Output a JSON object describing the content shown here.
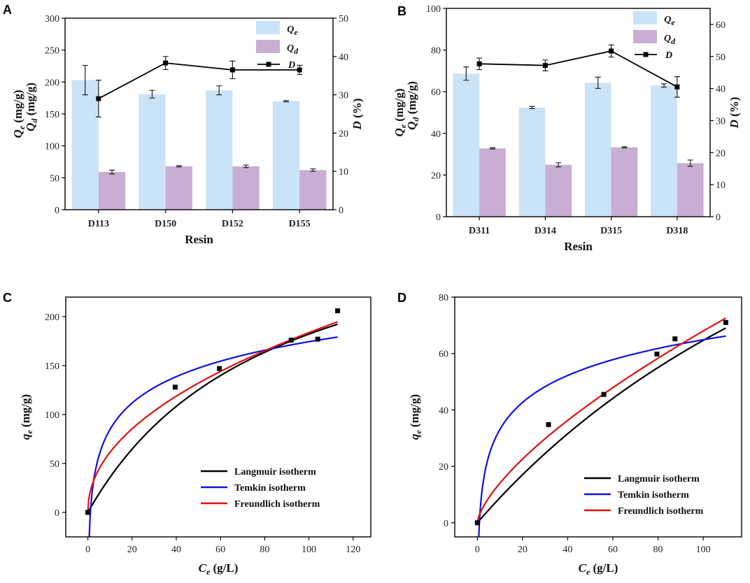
{
  "colors": {
    "qe_bar": "#cbe3f7",
    "qd_bar": "#c8aed2",
    "langmuir": "#000000",
    "temkin": "#1010e6",
    "freundlich": "#e01010"
  },
  "chart_data": [
    {
      "panel": "A",
      "type": "bar",
      "xlabel": "Resin",
      "ylabel_left": "Qe Qd (mg/g)",
      "ylabel_right": "D (%)",
      "categories": [
        "D113",
        "D150",
        "D152",
        "D155"
      ],
      "ylim_left": [
        0,
        300
      ],
      "yticks_left": [
        0,
        50,
        100,
        150,
        200,
        250,
        300
      ],
      "ylim_right": [
        0,
        50
      ],
      "yticks_right": [
        0,
        10,
        20,
        30,
        40,
        50
      ],
      "legend": [
        "Qe",
        "Qd",
        "D"
      ],
      "series": [
        {
          "name": "Qe",
          "values": [
            203,
            181,
            187,
            170
          ],
          "errors": [
            23,
            6,
            7,
            1
          ]
        },
        {
          "name": "Qd",
          "values": [
            59,
            68,
            68,
            62
          ],
          "errors": [
            3,
            1,
            2,
            2
          ]
        },
        {
          "name": "D",
          "axis": "right",
          "values": [
            29,
            38.3,
            36.5,
            36.5
          ],
          "errors": [
            4.8,
            1.7,
            2.3,
            1.2
          ]
        }
      ]
    },
    {
      "panel": "B",
      "type": "bar",
      "xlabel": "Resin",
      "ylabel_left": "Qe Qd (mg/g)",
      "ylabel_right": "D (%)",
      "categories": [
        "D311",
        "D314",
        "D315",
        "D318"
      ],
      "ylim_left": [
        0,
        100
      ],
      "yticks_left": [
        0,
        20,
        40,
        60,
        80,
        100
      ],
      "ylim_right": [
        0,
        65
      ],
      "yticks_right": [
        0,
        10,
        20,
        30,
        40,
        50,
        60
      ],
      "legend": [
        "Qe",
        "Qd",
        "D"
      ],
      "series": [
        {
          "name": "Qe",
          "values": [
            68.7,
            52.4,
            64.3,
            63
          ],
          "errors": [
            3.2,
            0.5,
            2.7,
            0.8
          ]
        },
        {
          "name": "Qd",
          "values": [
            32.8,
            24.9,
            33.3,
            25.7
          ],
          "errors": [
            0.3,
            1,
            0.3,
            1.5
          ]
        },
        {
          "name": "D",
          "axis": "right",
          "values": [
            47.7,
            47.2,
            51.7,
            40.5
          ],
          "errors": [
            1.8,
            1.7,
            1.9,
            3.2
          ]
        }
      ]
    },
    {
      "panel": "C",
      "type": "scatter",
      "xlabel": "Ce (g/L)",
      "ylabel": "qe (mg/g)",
      "xlim": [
        -10,
        128
      ],
      "xticks": [
        0,
        20,
        40,
        60,
        80,
        100,
        120
      ],
      "ylim": [
        -25,
        220
      ],
      "yticks": [
        0,
        50,
        100,
        150,
        200
      ],
      "legend": [
        "Langmuir isotherm",
        "Temkin isotherm",
        "Freundlich isotherm"
      ],
      "points": {
        "x": [
          0,
          39.5,
          59.5,
          92,
          104,
          113
        ],
        "y": [
          0,
          128,
          147,
          176,
          177,
          206
        ]
      },
      "fits": [
        {
          "name": "Langmuir isotherm",
          "model": "langmuir",
          "qm": 334,
          "kl": 0.012
        },
        {
          "name": "Temkin isotherm",
          "model": "temkin",
          "a": -5,
          "b": 38.96,
          "ka": 1.0
        },
        {
          "name": "Freundlich isotherm",
          "model": "freundlich",
          "kf": 20.5,
          "n": 2.1
        }
      ]
    },
    {
      "panel": "D",
      "type": "scatter",
      "xlabel": "Ce (g/L)",
      "ylabel": "qe (mg/g)",
      "xlim": [
        -10,
        117
      ],
      "xticks": [
        0,
        20,
        40,
        60,
        80,
        100
      ],
      "ylim": [
        -5,
        80
      ],
      "yticks": [
        0,
        20,
        40,
        60,
        80
      ],
      "legend": [
        "Langmuir isotherm",
        "Temkin isotherm",
        "Freundlich isotherm"
      ],
      "points": {
        "x": [
          0,
          31.5,
          56,
          79.5,
          87.5,
          110
        ],
        "y": [
          0,
          34.8,
          45.5,
          59.8,
          65.2,
          71
        ]
      },
      "fits": [
        {
          "name": "Langmuir isotherm",
          "model": "langmuir",
          "qm": 215,
          "kl": 0.0043
        },
        {
          "name": "Temkin isotherm",
          "model": "temkin",
          "a": 0,
          "b": 13.8,
          "ka": 1.1
        },
        {
          "name": "Freundlich isotherm",
          "model": "freundlich",
          "kf": 2.9,
          "n": 1.46
        }
      ]
    }
  ]
}
